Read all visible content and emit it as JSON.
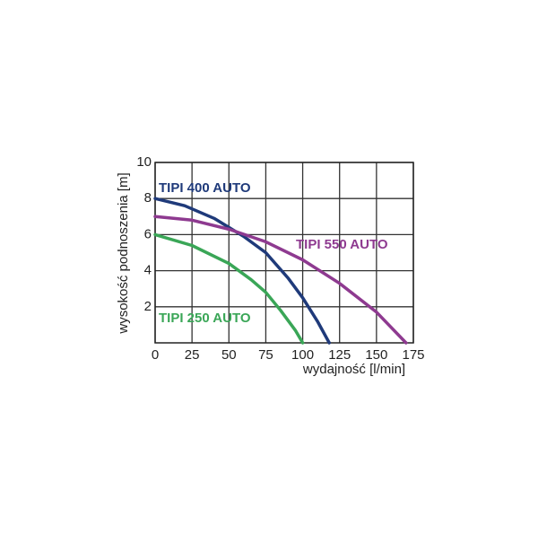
{
  "chart_data": {
    "type": "line",
    "x_label": "wydajność  [l/min]",
    "y_label": "wysokość podnoszenia [m]",
    "xlim": [
      0,
      175
    ],
    "xticks": [
      0,
      25,
      50,
      75,
      100,
      125,
      150,
      175
    ],
    "ylim": [
      0,
      10
    ],
    "yticks": [
      2,
      4,
      6,
      8,
      10
    ],
    "grid": true,
    "series": [
      {
        "name": "TIPI 400 AUTO",
        "color": "#1f3a7a",
        "x": [
          0,
          20,
          40,
          60,
          75,
          90,
          100,
          110,
          118
        ],
        "values": [
          8,
          7.6,
          6.9,
          5.9,
          5.0,
          3.6,
          2.5,
          1.2,
          0
        ]
      },
      {
        "name": "TIPI 550 AUTO",
        "color": "#8e3a90",
        "x": [
          0,
          25,
          50,
          75,
          100,
          125,
          150,
          170
        ],
        "values": [
          7,
          6.8,
          6.3,
          5.6,
          4.6,
          3.3,
          1.7,
          0
        ]
      },
      {
        "name": "TIPI 250 AUTO",
        "color": "#3aa657",
        "x": [
          0,
          25,
          50,
          65,
          75,
          85,
          95,
          100
        ],
        "values": [
          6,
          5.4,
          4.4,
          3.5,
          2.8,
          1.8,
          0.7,
          0
        ]
      }
    ]
  }
}
